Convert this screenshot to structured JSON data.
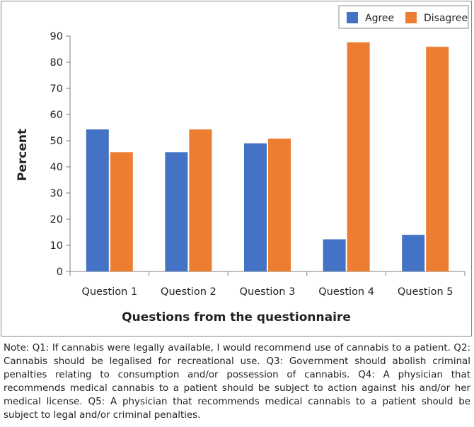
{
  "chart_data": {
    "type": "bar",
    "categories": [
      "Question 1",
      "Question 2",
      "Question 3",
      "Question 4",
      "Question 5"
    ],
    "series": [
      {
        "name": "Agree",
        "values": [
          54.3,
          45.6,
          49.0,
          12.3,
          14.0
        ],
        "color": "#4472c4"
      },
      {
        "name": "Disagree",
        "values": [
          45.6,
          54.3,
          50.8,
          87.6,
          85.9
        ],
        "color": "#ed7d31"
      }
    ],
    "title": "",
    "xlabel": "Questions from the questionnaire",
    "ylabel": "Percent",
    "ylim": [
      0,
      90
    ],
    "yticks": [
      "0",
      "10",
      "20",
      "30",
      "40",
      "50",
      "60",
      "70",
      "80",
      "90"
    ],
    "grid": false,
    "legend_position": "top-right"
  },
  "note": "Note: Q1: If cannabis were legally available, I would recommend use of cannabis to a patient. Q2: Cannabis should be legalised for recreational use. Q3: Government should abolish criminal penalties relating to consumption and/or possession of cannabis. Q4: A physician that recommends medical cannabis to a patient should be subject to action against his and/or her medical license. Q5: A physician that recommends medical cannabis to a patient should be subject to legal and/or criminal penalties."
}
